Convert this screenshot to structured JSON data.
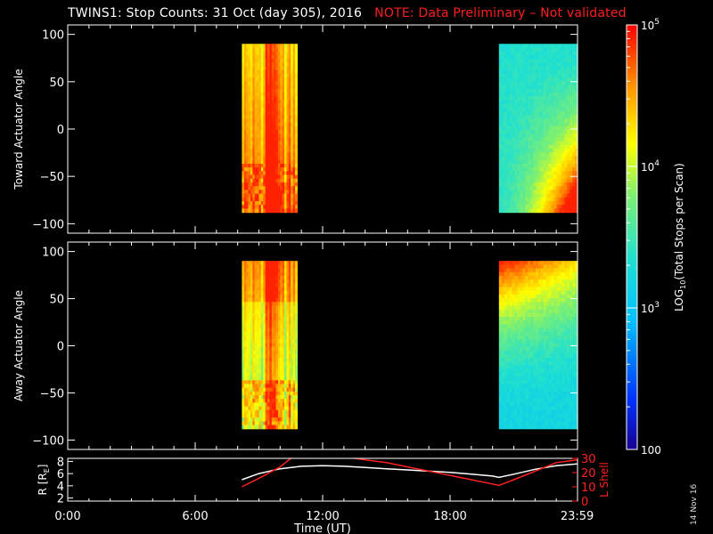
{
  "title": "TWINS1: Stop Counts: 31 Oct (day 305), 2016",
  "note": "NOTE: Data Preliminary – Not validated",
  "generated_stamp": "14 Nov 16",
  "colors": {
    "background": "#000000",
    "axes": "#ffffff",
    "note": "#ff1f1f",
    "l_shell": "#ff2020",
    "radius_line": "#ffffff"
  },
  "chart_data": [
    {
      "type": "heatmap",
      "id": "toward",
      "ylabel": "Toward Actuator Angle",
      "ylim": [
        -110,
        110
      ],
      "yticks": [
        100,
        50,
        0,
        -50,
        -100
      ],
      "xlim_hours": [
        0,
        24
      ],
      "blocks": [
        {
          "x_start_hours": 8.2,
          "x_end_hours": 10.8,
          "angle_range": [
            -88,
            90
          ],
          "log_counts_min": 3.5,
          "log_counts_max": 4.9
        },
        {
          "x_start_hours": 20.3,
          "x_end_hours": 24.0,
          "angle_range": [
            -88,
            90
          ],
          "log_counts_min": 3.0,
          "log_counts_max": 4.9
        }
      ]
    },
    {
      "type": "heatmap",
      "id": "away",
      "ylabel": "Away Actuator Angle",
      "ylim": [
        -110,
        110
      ],
      "yticks": [
        100,
        50,
        0,
        -50,
        -100
      ],
      "xlim_hours": [
        0,
        24
      ],
      "blocks": [
        {
          "x_start_hours": 8.2,
          "x_end_hours": 10.8,
          "angle_range": [
            -88,
            90
          ],
          "log_counts_min": 3.4,
          "log_counts_max": 4.9
        },
        {
          "x_start_hours": 20.3,
          "x_end_hours": 24.0,
          "angle_range": [
            -88,
            90
          ],
          "log_counts_min": 2.9,
          "log_counts_max": 4.9
        }
      ]
    },
    {
      "type": "line",
      "id": "orbit",
      "ylabel": "R [R",
      "ylabel_sub": "E",
      "ylabel_suffix": "]",
      "ylim": [
        1.5,
        8.5
      ],
      "yticks": [
        8,
        6,
        4,
        2
      ],
      "y2label": "L Shell",
      "y2lim": [
        0,
        30
      ],
      "y2ticks": [
        30,
        20,
        10,
        0
      ],
      "xlabel": "Time (UT)",
      "xticks": [
        {
          "hours": 0,
          "label": "0:00"
        },
        {
          "hours": 6,
          "label": "6:00"
        },
        {
          "hours": 12,
          "label": "12:00"
        },
        {
          "hours": 18,
          "label": "18:00"
        },
        {
          "hours": 23.983,
          "label": "23:59"
        }
      ],
      "series": [
        {
          "axis": "left",
          "x": [
            8.2,
            9.0,
            10.0,
            11.0,
            12.0,
            13.0,
            14.0,
            15.0,
            16.0,
            17.0,
            18.0,
            19.0,
            20.0,
            20.3,
            21.0,
            22.0,
            23.0,
            24.0
          ],
          "y": [
            5.0,
            6.0,
            6.8,
            7.2,
            7.3,
            7.2,
            7.0,
            6.8,
            6.6,
            6.4,
            6.2,
            5.9,
            5.6,
            5.4,
            5.9,
            6.7,
            7.3,
            7.6
          ]
        },
        {
          "axis": "right",
          "x": [
            8.2,
            9.0,
            10.0,
            10.5,
            11.0,
            12.0,
            13.0,
            14.0,
            15.0,
            16.0,
            17.0,
            18.0,
            19.0,
            20.0,
            20.3,
            21.0,
            22.0,
            23.0,
            24.0
          ],
          "y": [
            10,
            16,
            24,
            30,
            31,
            32,
            31,
            29,
            27,
            24,
            21,
            18,
            15,
            12,
            11,
            15,
            21,
            27,
            29
          ]
        }
      ]
    }
  ],
  "colorbar": {
    "label": "LOG",
    "label_sub": "10",
    "label_suffix": "(Total Stops per Scan)",
    "scale": "log",
    "range": [
      100,
      100000
    ],
    "ticks": [
      {
        "value": 100000,
        "base": "10",
        "exp": "5"
      },
      {
        "value": 10000,
        "base": "10",
        "exp": "4"
      },
      {
        "value": 1000,
        "base": "10",
        "exp": "3"
      },
      {
        "value": 100,
        "base": "100",
        "exp": ""
      }
    ]
  }
}
